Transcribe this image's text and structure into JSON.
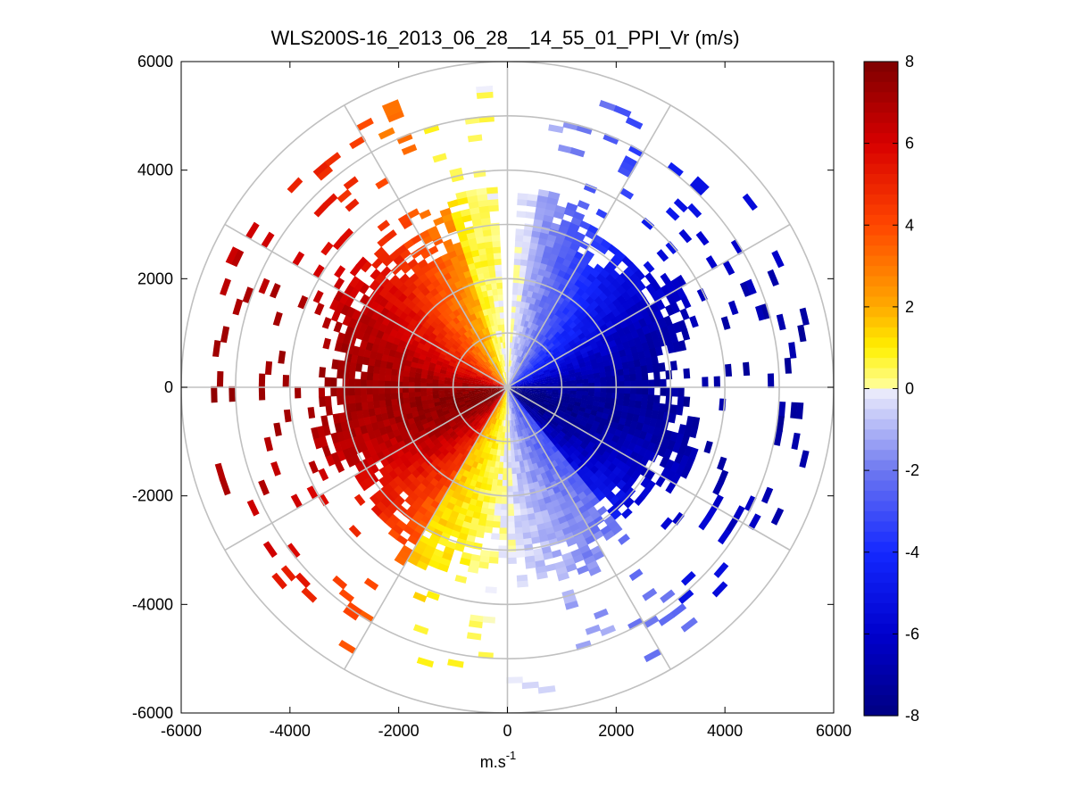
{
  "chart_data": {
    "type": "polar-ppi-scan",
    "title": "WLS200S-16_2013_06_28__14_55_01_PPI_Vr (m/s)",
    "xlabel_base": "m.s",
    "xlabel_exponent": "-1",
    "ylabel": "",
    "xlim": [
      -6000,
      6000
    ],
    "ylim": [
      -6000,
      6000
    ],
    "x_ticks": [
      -6000,
      -4000,
      -2000,
      0,
      2000,
      4000,
      6000
    ],
    "y_ticks": [
      6000,
      4000,
      2000,
      0,
      -2000,
      -4000,
      -6000
    ],
    "range_rings": [
      1000,
      2000,
      3000,
      4000,
      5000,
      6000
    ],
    "spoke_angles_deg": [
      0,
      30,
      60,
      90,
      120,
      150,
      180,
      210,
      240,
      270,
      300,
      330
    ],
    "colorbar": {
      "range": [
        -8,
        8
      ],
      "ticks": [
        8,
        6,
        4,
        2,
        0,
        -2,
        -4,
        -6,
        -8
      ],
      "colormap": "diverging dark blue - white - dark red"
    },
    "field": {
      "description": "radial velocity, positive (towards red) on western half, negative (blue) on eastern half",
      "dense_max_range_m": 3700,
      "outer_sparse_max_range_m": 6000,
      "positive_sector_az_deg": [
        185,
        357
      ],
      "negative_sector_az_deg": [
        5,
        178
      ]
    }
  }
}
